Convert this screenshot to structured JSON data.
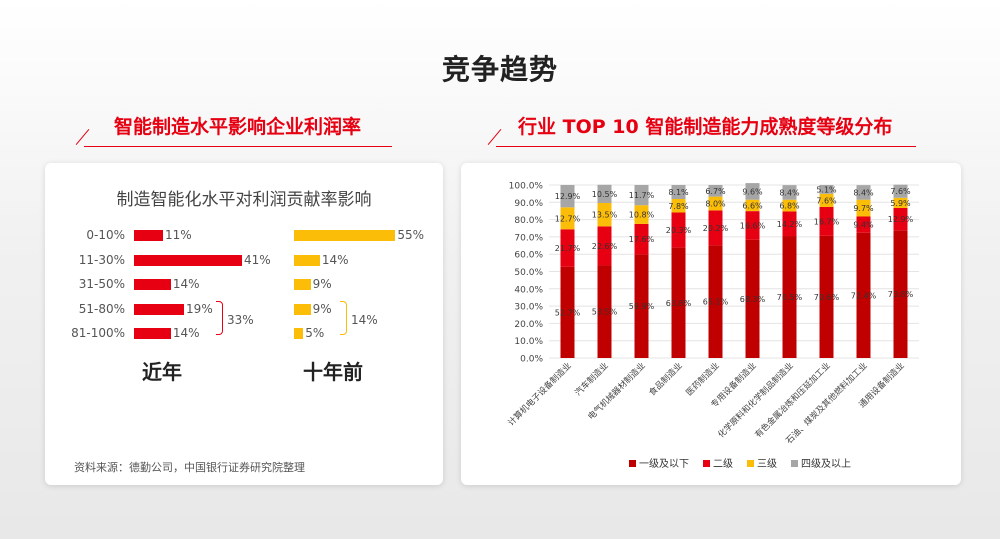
{
  "page_title": "竞争趋势",
  "left": {
    "section_title": "智能制造水平影响企业利润率",
    "sub_title": "制造智能化水平对利润贡献率影响",
    "rows": [
      {
        "label": "0-10%",
        "recent": "11%",
        "past": "55%"
      },
      {
        "label": "11-30%",
        "recent": "41%",
        "past": "14%"
      },
      {
        "label": "31-50%",
        "recent": "14%",
        "past": "9%"
      },
      {
        "label": "51-80%",
        "recent": "19%",
        "past": "9%"
      },
      {
        "label": "81-100%",
        "recent": "14%",
        "past": "5%"
      }
    ],
    "recent_group": "33%",
    "past_group": "14%",
    "recent_title": "近年",
    "past_title": "十年前",
    "source": "资料来源：德勤公司，中国银行证券研究院整理",
    "colors": {
      "recent": "#e60012",
      "past": "#fbbd08"
    }
  },
  "right": {
    "section_title": "行业 TOP 10 智能制造能力成熟度等级分布"
  },
  "chart_data": [
    {
      "type": "bar",
      "title": "制造智能化水平对利润贡献率影响",
      "categories": [
        "0-10%",
        "11-30%",
        "31-50%",
        "51-80%",
        "81-100%"
      ],
      "series": [
        {
          "name": "近年",
          "values": [
            11,
            41,
            14,
            19,
            14
          ]
        },
        {
          "name": "十年前",
          "values": [
            55,
            14,
            9,
            9,
            5
          ]
        }
      ]
    },
    {
      "type": "bar",
      "stacked": true,
      "categories": [
        "计算机电子设备制造业",
        "汽车制造业",
        "电气机械器材制造业",
        "食品制造业",
        "医药制造业",
        "专用设备制造业",
        "化学原料和化学制品制造业",
        "有色金属冶炼和压延加工业",
        "石油、煤炭及其他燃料加工业",
        "通用设备制造业"
      ],
      "series": [
        {
          "name": "一级及以下",
          "color": "#c00000",
          "values": [
            52.7,
            53.5,
            59.9,
            63.8,
            65.1,
            68.3,
            70.5,
            70.6,
            72.4,
            73.8
          ],
          "labels": [
            "52.7%",
            "53.5%",
            "59.9%",
            "63.8%",
            "65.1%",
            "68.3%",
            "70.5%",
            "70.6%",
            "72.4%",
            "73.8%"
          ]
        },
        {
          "name": "二级",
          "color": "#e60012",
          "values": [
            21.7,
            22.6,
            17.6,
            20.3,
            20.2,
            16.6,
            14.2,
            16.7,
            9.4,
            12.9
          ],
          "labels": [
            "21.7%",
            "22.6%",
            "17.6%",
            "20.3%",
            "20.2%",
            "16.6%",
            "14.2%",
            "16.7%",
            "9.4%",
            "12.9%"
          ]
        },
        {
          "name": "三级",
          "color": "#fbbd08",
          "values": [
            12.7,
            13.5,
            10.8,
            7.8,
            8.0,
            6.6,
            6.8,
            7.6,
            9.7,
            5.9
          ],
          "labels": [
            "12.7%",
            "13.5%",
            "10.8%",
            "7.8%",
            "8.0%",
            "6.6%",
            "6.8%",
            "7.6%",
            "9.7%",
            "5.9%"
          ]
        },
        {
          "name": "四级及以上",
          "color": "#a6a6a6",
          "values": [
            12.9,
            10.5,
            11.7,
            8.1,
            6.7,
            9.6,
            8.4,
            5.1,
            8.4,
            7.6
          ],
          "labels": [
            "12.9%",
            "10.5%",
            "11.7%",
            "8.1%",
            "6.7%",
            "9.6%",
            "8.4%",
            "5.1%",
            "8.4%",
            "7.6%"
          ]
        }
      ],
      "y_ticks": [
        "0.0%",
        "10.0%",
        "20.0%",
        "30.0%",
        "40.0%",
        "50.0%",
        "60.0%",
        "70.0%",
        "80.0%",
        "90.0%",
        "100.0%"
      ],
      "ylim": [
        0,
        100
      ],
      "legend": "bottom"
    }
  ]
}
